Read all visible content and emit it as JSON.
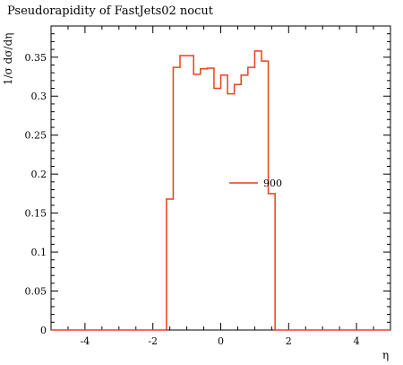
{
  "chart_data": {
    "type": "line",
    "title": "Pseudorapidity of FastJets02 nocut",
    "xlabel": "η",
    "ylabel": "1/σ dσ/dη",
    "xlim": [
      -5,
      5
    ],
    "ylim": [
      0,
      0.39
    ],
    "x_ticks": [
      -4,
      -2,
      0,
      2,
      4
    ],
    "x_tick_labels": [
      "-4",
      "-2",
      "0",
      "2",
      "4"
    ],
    "y_ticks": [
      0,
      0.05,
      0.1,
      0.15,
      0.2,
      0.25,
      0.3,
      0.35
    ],
    "y_tick_labels": [
      "0",
      "0.05",
      "0.1",
      "0.15",
      "0.2",
      "0.25",
      "0.3",
      "0.35"
    ],
    "grid": false,
    "legend_position": "center-right",
    "series": [
      {
        "name": "900",
        "color": "#e8401c",
        "bin_edges": [
          -5,
          -1.8,
          -1.6,
          -1.4,
          -1.2,
          -1.0,
          -0.8,
          -0.6,
          -0.4,
          -0.2,
          0.0,
          0.2,
          0.4,
          0.6,
          0.8,
          1.0,
          1.2,
          1.4,
          1.6,
          5
        ],
        "values": [
          0,
          0,
          0.168,
          0.337,
          0.352,
          0.352,
          0.328,
          0.335,
          0.336,
          0.31,
          0.327,
          0.303,
          0.315,
          0.327,
          0.337,
          0.358,
          0.345,
          0.175,
          0
        ]
      }
    ]
  }
}
